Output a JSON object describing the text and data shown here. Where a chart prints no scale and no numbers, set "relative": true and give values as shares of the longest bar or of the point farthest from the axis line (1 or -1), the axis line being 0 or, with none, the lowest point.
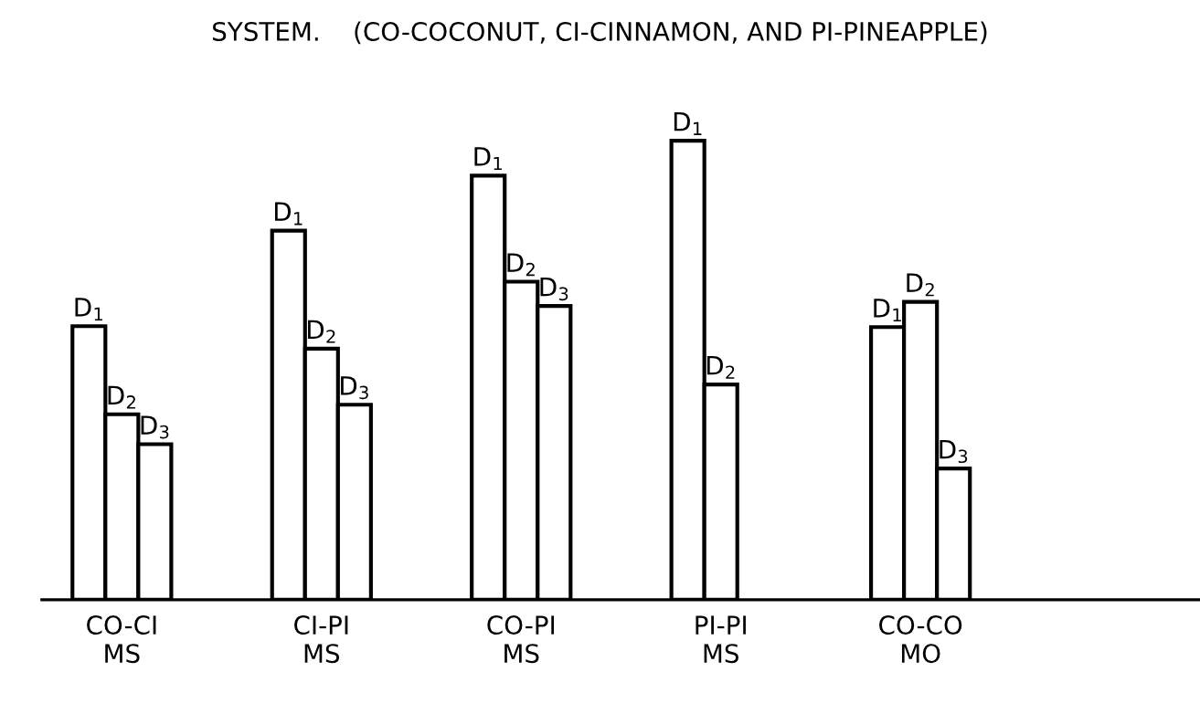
{
  "chart_data": {
    "type": "bar",
    "title": "SYSTEM.    (CO-COCONUT, CI-CINNAMON, AND PI-PINEAPPLE)",
    "categories": [
      "CO-CI\nMS",
      "CI-PI\nMS",
      "CO-PI\nMS",
      "PI-PI\nMS",
      "CO-CO\nMO"
    ],
    "relative": true,
    "series": [
      {
        "name": "D$_{1}$",
        "color": "#ffffff",
        "values": [
          0.596,
          0.804,
          0.924,
          1,
          0.594
        ]
      },
      {
        "name": "D$_{2}$",
        "color": "#ffffff",
        "values": [
          0.404,
          0.547,
          0.693,
          0.469,
          0.649
        ]
      },
      {
        "name": "D$_{3}$",
        "color": "#ffffff",
        "values": [
          0.339,
          0.425,
          0.64,
          null,
          0.286
        ]
      }
    ],
    "legend": false,
    "grid": false
  }
}
